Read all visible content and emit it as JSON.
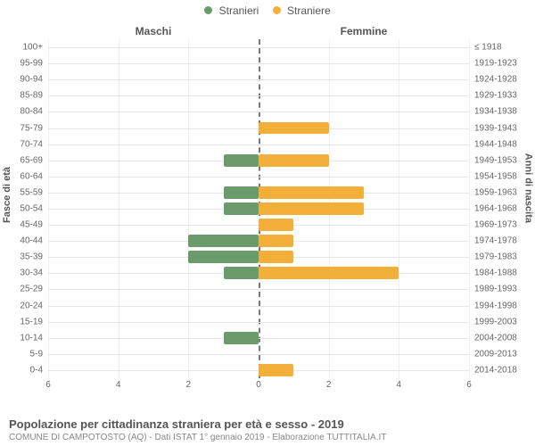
{
  "legend": {
    "male": {
      "label": "Stranieri",
      "color": "#6b9b6b"
    },
    "female": {
      "label": "Straniere",
      "color": "#f2b03a"
    }
  },
  "headers": {
    "male": "Maschi",
    "female": "Femmine"
  },
  "axis_titles": {
    "left": "Fasce di età",
    "right": "Anni di nascita"
  },
  "xaxis": {
    "max": 6,
    "ticks": [
      6,
      4,
      2,
      0,
      2,
      4,
      6
    ]
  },
  "grid_color": "#e6e6e6",
  "centerline_color": "#777777",
  "background": "#ffffff",
  "categories": [
    {
      "age": "100+",
      "birth": "≤ 1918",
      "m": 0,
      "f": 0
    },
    {
      "age": "95-99",
      "birth": "1919-1923",
      "m": 0,
      "f": 0
    },
    {
      "age": "90-94",
      "birth": "1924-1928",
      "m": 0,
      "f": 0
    },
    {
      "age": "85-89",
      "birth": "1929-1933",
      "m": 0,
      "f": 0
    },
    {
      "age": "80-84",
      "birth": "1934-1938",
      "m": 0,
      "f": 0
    },
    {
      "age": "75-79",
      "birth": "1939-1943",
      "m": 0,
      "f": 2
    },
    {
      "age": "70-74",
      "birth": "1944-1948",
      "m": 0,
      "f": 0
    },
    {
      "age": "65-69",
      "birth": "1949-1953",
      "m": 1,
      "f": 2
    },
    {
      "age": "60-64",
      "birth": "1954-1958",
      "m": 0,
      "f": 0
    },
    {
      "age": "55-59",
      "birth": "1959-1963",
      "m": 1,
      "f": 3
    },
    {
      "age": "50-54",
      "birth": "1964-1968",
      "m": 1,
      "f": 3
    },
    {
      "age": "45-49",
      "birth": "1969-1973",
      "m": 0,
      "f": 1
    },
    {
      "age": "40-44",
      "birth": "1974-1978",
      "m": 2,
      "f": 1
    },
    {
      "age": "35-39",
      "birth": "1979-1983",
      "m": 2,
      "f": 1
    },
    {
      "age": "30-34",
      "birth": "1984-1988",
      "m": 1,
      "f": 4
    },
    {
      "age": "25-29",
      "birth": "1989-1993",
      "m": 0,
      "f": 0
    },
    {
      "age": "20-24",
      "birth": "1994-1998",
      "m": 0,
      "f": 0
    },
    {
      "age": "15-19",
      "birth": "1999-2003",
      "m": 0,
      "f": 0
    },
    {
      "age": "10-14",
      "birth": "2004-2008",
      "m": 1,
      "f": 0
    },
    {
      "age": "5-9",
      "birth": "2009-2013",
      "m": 0,
      "f": 0
    },
    {
      "age": "0-4",
      "birth": "2014-2018",
      "m": 0,
      "f": 1
    }
  ],
  "footer": {
    "title": "Popolazione per cittadinanza straniera per età e sesso - 2019",
    "subtitle": "COMUNE DI CAMPOTOSTO (AQ) - Dati ISTAT 1° gennaio 2019 - Elaborazione TUTTITALIA.IT"
  }
}
